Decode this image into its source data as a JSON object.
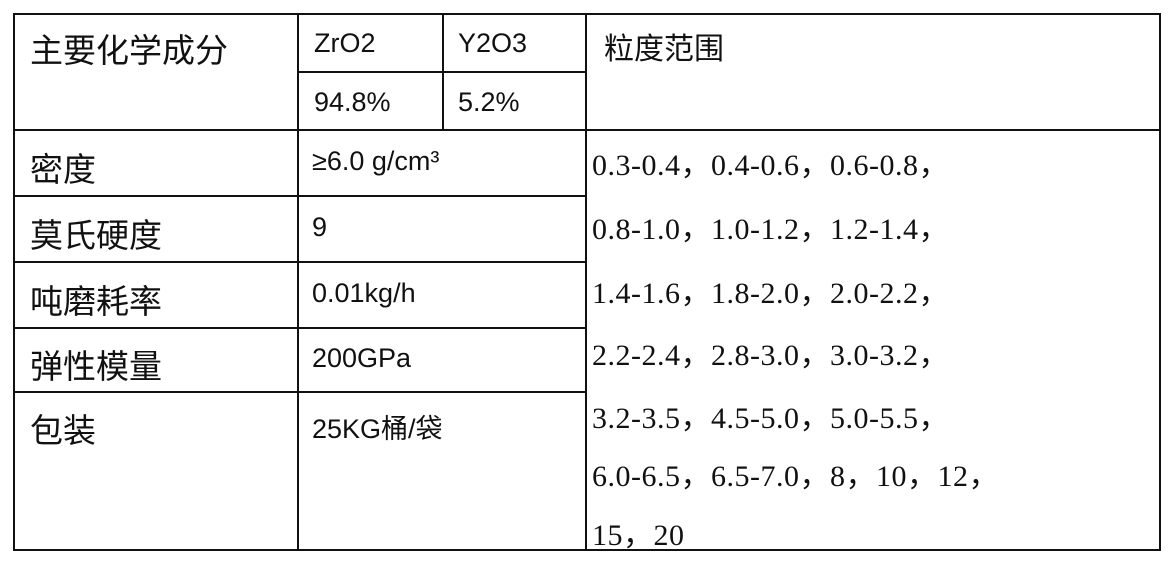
{
  "table": {
    "composition_label": "主要化学成分",
    "components": [
      {
        "name": "ZrO2",
        "value": "94.8%"
      },
      {
        "name": "Y2O3",
        "value": "5.2%"
      }
    ],
    "size_range_label": "粒度范围",
    "properties": [
      {
        "label": "密度",
        "value": "≥6.0 g/cm³"
      },
      {
        "label": "莫氏硬度",
        "value": "9"
      },
      {
        "label": "吨磨耗率",
        "value": "0.01kg/h"
      },
      {
        "label": "弹性模量",
        "value": "200GPa"
      },
      {
        "label": "包装",
        "value": "25KG桶/袋"
      }
    ],
    "size_range_lines": [
      "0.3-0.4，0.4-0.6，0.6-0.8，",
      "0.8-1.0，1.0-1.2，1.2-1.4，",
      "1.4-1.6，1.8-2.0，2.0-2.2，",
      "2.2-2.4，2.8-3.0，3.0-3.2，",
      "3.2-3.5，4.5-5.0，5.0-5.5，",
      "6.0-6.5，6.5-7.0，8，10，12，",
      "15，20"
    ]
  }
}
